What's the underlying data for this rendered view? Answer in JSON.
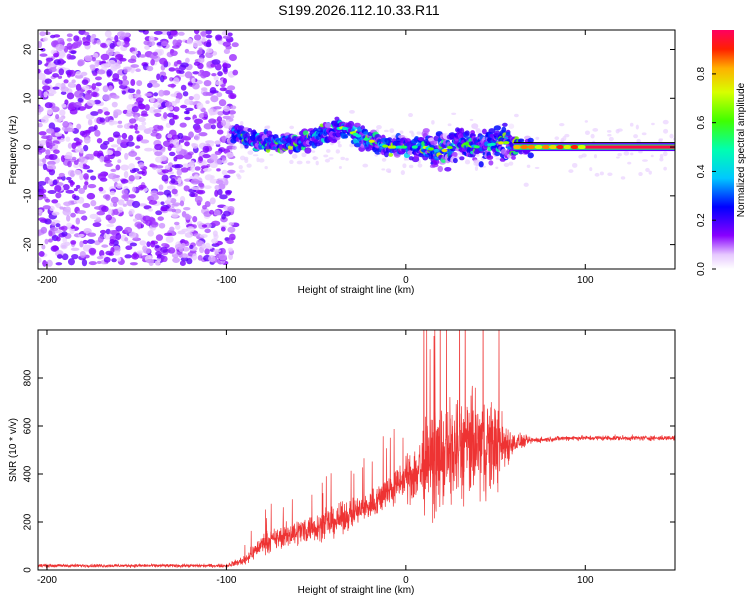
{
  "title": "S199.2026.112.10.33.R11",
  "chart_data": [
    {
      "type": "heatmap",
      "name": "spectrogram",
      "xlabel": "Height of straight line (km)",
      "ylabel": "Frequency (Hz)",
      "xlim": [
        -205,
        150
      ],
      "ylim": [
        -25,
        24
      ],
      "xticks": [
        -200,
        -100,
        0,
        100
      ],
      "xtick_labels": [
        "-200",
        "-100",
        "0",
        "100"
      ],
      "yticks": [
        -20,
        -10,
        0,
        10,
        20
      ],
      "ytick_labels": [
        "-20",
        "-10",
        "0",
        "10",
        "20"
      ],
      "colorbar": {
        "label": "Normalized spectral amplitude",
        "ticks": [
          0.0,
          0.2,
          0.4,
          0.6,
          0.8
        ],
        "tick_labels": [
          "0.0",
          "0.2",
          "0.4",
          "0.6",
          "0.8"
        ],
        "range": [
          0,
          0.98
        ]
      },
      "features": [
        {
          "region": "noise",
          "x_range": [
            -205,
            -95
          ],
          "freq_range": [
            -24,
            24
          ],
          "amplitude": 0.1
        },
        {
          "region": "tone-track",
          "points": [
            [
              -95,
              3
            ],
            [
              -80,
              1
            ],
            [
              -60,
              1
            ],
            [
              -45,
              3
            ],
            [
              -35,
              4
            ],
            [
              -25,
              2
            ],
            [
              -10,
              0
            ],
            [
              0,
              0
            ],
            [
              10,
              0
            ],
            [
              20,
              -1
            ],
            [
              30,
              1
            ],
            [
              40,
              0
            ],
            [
              55,
              1
            ],
            [
              65,
              0
            ],
            [
              150,
              0
            ]
          ]
        },
        {
          "region": "steady-tone",
          "x_range": [
            60,
            150
          ],
          "freq": 0,
          "amplitude": 0.98
        }
      ]
    },
    {
      "type": "line",
      "name": "snr",
      "xlabel": "Height of straight line (km)",
      "ylabel": "SNR (10 * v/v)",
      "xlim": [
        -205,
        150
      ],
      "ylim": [
        0,
        1000
      ],
      "xticks": [
        -200,
        -100,
        0,
        100
      ],
      "xtick_labels": [
        "-200",
        "-100",
        "0",
        "100"
      ],
      "yticks": [
        0,
        200,
        400,
        600,
        800
      ],
      "ytick_labels": [
        "0",
        "200",
        "400",
        "600",
        "800"
      ],
      "color": "#ee3333",
      "series": [
        {
          "name": "SNR",
          "x": [
            -205,
            -100,
            -90,
            -80,
            -60,
            -40,
            -20,
            0,
            10,
            20,
            30,
            40,
            50,
            60,
            70,
            80,
            90,
            100,
            120,
            150
          ],
          "values": [
            18,
            18,
            40,
            110,
            160,
            200,
            270,
            380,
            430,
            470,
            500,
            520,
            520,
            530,
            540,
            545,
            550,
            550,
            550,
            550
          ],
          "spread": [
            10,
            10,
            30,
            60,
            80,
            90,
            90,
            120,
            280,
            300,
            330,
            320,
            280,
            60,
            20,
            15,
            15,
            15,
            15,
            15
          ]
        }
      ]
    }
  ]
}
